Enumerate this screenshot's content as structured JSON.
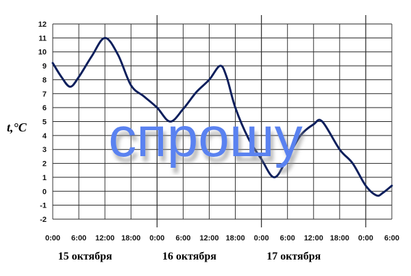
{
  "chart_data": {
    "type": "line",
    "title": "",
    "ylabel": "t,°C",
    "xlabel": "",
    "xlim_hours": [
      0,
      78
    ],
    "ylim": [
      -2,
      12
    ],
    "grid": true,
    "x_tick_labels": [
      "0:00",
      "6:00",
      "12:00",
      "18:00",
      "0:00",
      "6:00",
      "12:00",
      "18:00",
      "0:00",
      "6:00",
      "12:00",
      "18:00",
      "0:00",
      "6:00"
    ],
    "y_ticks": [
      12,
      11,
      10,
      9,
      8,
      7,
      6,
      5,
      4,
      3,
      2,
      1,
      0,
      -1,
      -2
    ],
    "date_labels": [
      "15 октября",
      "16 октября",
      "17 октября"
    ],
    "series": [
      {
        "color": "#0d1f5c",
        "x_hours": [
          0,
          2,
          4,
          6,
          9,
          12,
          15,
          18,
          21,
          24,
          27,
          30,
          33,
          36,
          38.5,
          40,
          42,
          45,
          48,
          51,
          54,
          57,
          60,
          62,
          66,
          69,
          72,
          74.5,
          76,
          78
        ],
        "y": [
          9.2,
          8.2,
          7.5,
          8.2,
          9.7,
          11,
          9.8,
          7.6,
          6.8,
          6.0,
          5.0,
          5.9,
          7.1,
          8.0,
          9.0,
          8.2,
          6.0,
          3.8,
          2.3,
          1.0,
          2.4,
          4.0,
          4.8,
          5.0,
          3.0,
          2.0,
          0.4,
          -0.3,
          -0.1,
          0.4
        ]
      }
    ]
  },
  "watermark": {
    "text": "спрошу",
    "color": "#5a82f0"
  }
}
